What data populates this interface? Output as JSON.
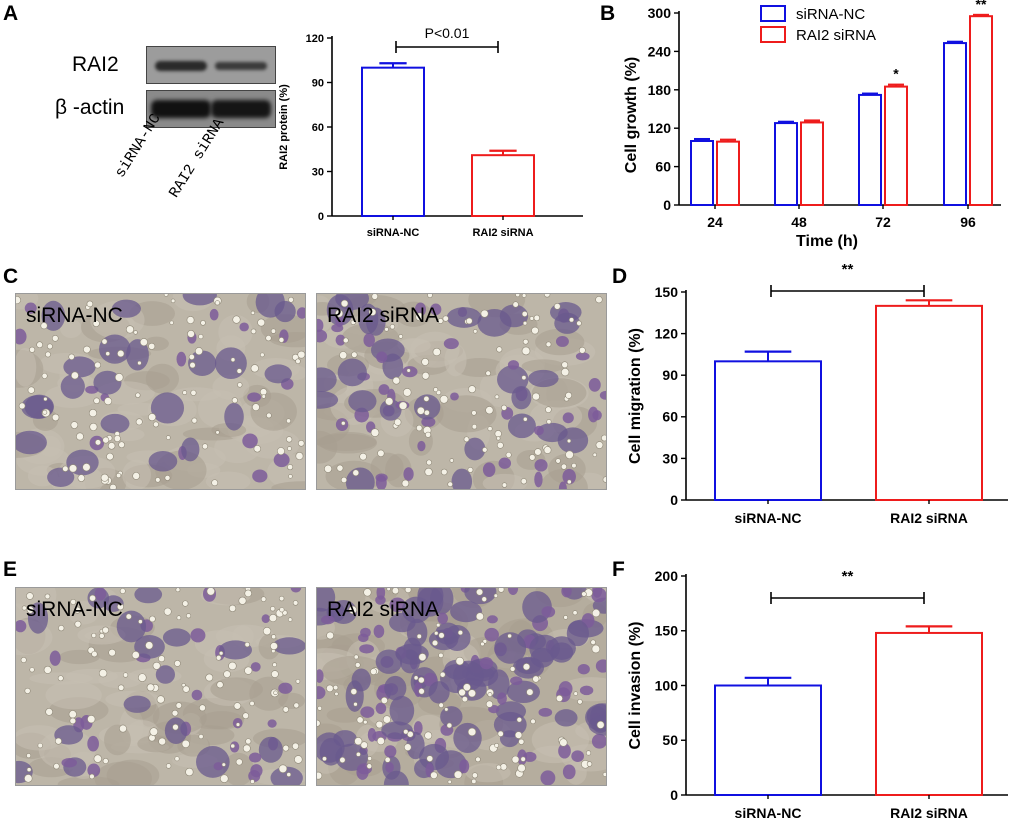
{
  "panel_letters": {
    "a": "A",
    "b": "B",
    "c": "C",
    "d": "D",
    "e": "E",
    "f": "F"
  },
  "blot": {
    "row_labels": [
      "RAI2",
      "β -actin"
    ],
    "lane_labels": [
      "siRNA-NC",
      "RAI2 siRNA"
    ]
  },
  "micrographs": {
    "c_left": "siRNA-NC",
    "c_right": "RAI2 siRNA",
    "e_left": "siRNA-NC",
    "e_right": "RAI2 siRNA"
  },
  "colors": {
    "nc": "#1010e0",
    "si": "#ee1c1c",
    "axis": "#000000"
  },
  "chart_data": [
    {
      "id": "chartA",
      "type": "bar",
      "ylabel": "RAI2 protein (%)",
      "categories": [
        "siRNA-NC",
        "RAI2 siRNA"
      ],
      "values": [
        100,
        41
      ],
      "errors": [
        3,
        3
      ],
      "ylim": [
        0,
        120
      ],
      "yticks": [
        0,
        30,
        60,
        90,
        120
      ],
      "annotation": "P<0.01"
    },
    {
      "id": "chartB",
      "type": "bar",
      "xlabel": "Time (h)",
      "ylabel": "Cell growth (%)",
      "categories": [
        "24",
        "48",
        "72",
        "96"
      ],
      "series": [
        {
          "name": "siRNA-NC",
          "values": [
            100,
            128,
            172,
            253
          ],
          "errors": [
            3,
            2,
            2,
            2
          ]
        },
        {
          "name": "RAI2 siRNA",
          "values": [
            99,
            129,
            185,
            295
          ],
          "errors": [
            3,
            3,
            3,
            2
          ]
        }
      ],
      "significance": [
        "",
        "",
        "*",
        "**"
      ],
      "ylim": [
        0,
        300
      ],
      "yticks": [
        0,
        60,
        120,
        180,
        240,
        300
      ],
      "legend": "top"
    },
    {
      "id": "chartD",
      "type": "bar",
      "ylabel": "Cell migration (%)",
      "categories": [
        "siRNA-NC",
        "RAI2 siRNA"
      ],
      "values": [
        100,
        140
      ],
      "errors": [
        7,
        4
      ],
      "ylim": [
        0,
        150
      ],
      "yticks": [
        0,
        30,
        60,
        90,
        120,
        150
      ],
      "annotation": "**"
    },
    {
      "id": "chartF",
      "type": "bar",
      "ylabel": "Cell invasion (%)",
      "categories": [
        "siRNA-NC",
        "RAI2 siRNA"
      ],
      "values": [
        100,
        148
      ],
      "errors": [
        7,
        6
      ],
      "ylim": [
        0,
        200
      ],
      "yticks": [
        0,
        50,
        100,
        150,
        200
      ],
      "annotation": "**"
    }
  ]
}
